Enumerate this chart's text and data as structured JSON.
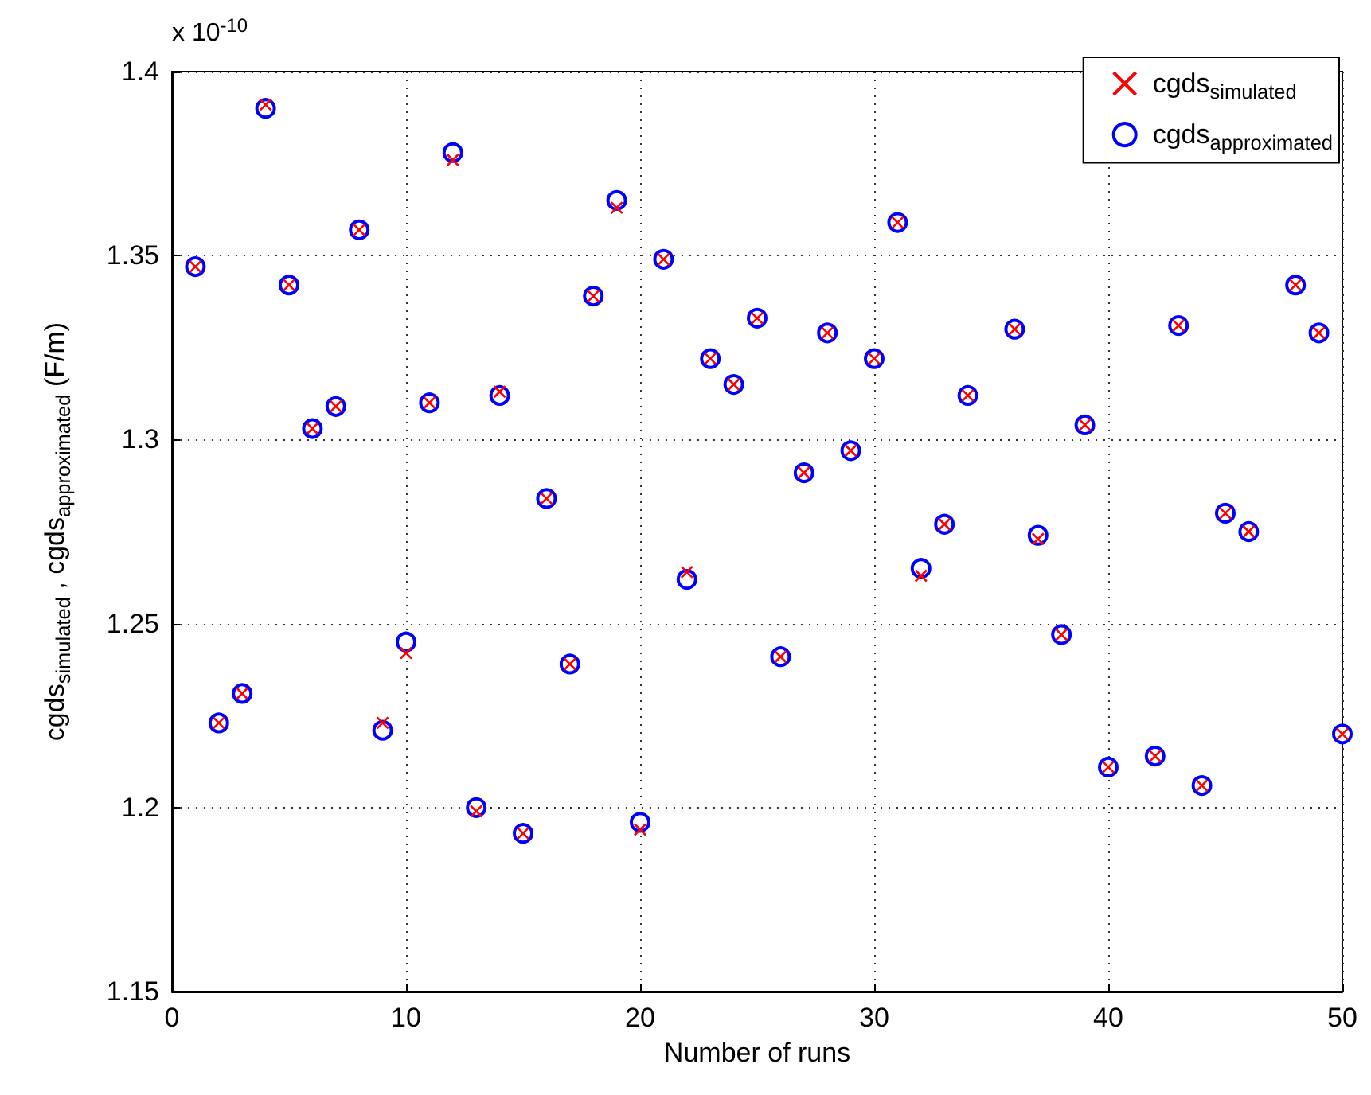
{
  "chart_data": {
    "type": "scatter",
    "xlabel": "Number of runs",
    "ylabel": "cgds$_{simulated}$ , cgds$_{approximated}$ (F/m)",
    "annotations": [
      "x 10$^{-10}$"
    ],
    "xlim": [
      0,
      50
    ],
    "xticks": [
      0,
      10,
      20,
      30,
      40,
      50
    ],
    "ylim": [
      1.15,
      1.4
    ],
    "yticks": [
      1.15,
      1.2,
      1.25,
      1.3,
      1.35,
      1.4
    ],
    "grid": true,
    "legend": "top right",
    "series": [
      {
        "name": "cgds$_{simulated}$",
        "color": "#ff0000",
        "marker": "cross",
        "x": [
          1,
          2,
          3,
          4,
          5,
          6,
          7,
          8,
          9,
          10,
          11,
          12,
          13,
          14,
          15,
          16,
          17,
          18,
          19,
          20,
          21,
          22,
          23,
          24,
          25,
          26,
          27,
          28,
          29,
          30,
          31,
          32,
          33,
          34,
          36,
          37,
          38,
          39,
          40,
          42,
          43,
          44,
          45,
          46,
          48,
          49,
          50
        ],
        "values": [
          1.347,
          1.223,
          1.231,
          1.391,
          1.342,
          1.303,
          1.309,
          1.357,
          1.223,
          1.242,
          1.31,
          1.376,
          1.199,
          1.313,
          1.193,
          1.284,
          1.239,
          1.339,
          1.363,
          1.194,
          1.349,
          1.264,
          1.322,
          1.315,
          1.333,
          1.241,
          1.291,
          1.329,
          1.297,
          1.322,
          1.359,
          1.263,
          1.277,
          1.312,
          1.33,
          1.273,
          1.247,
          1.304,
          1.211,
          1.214,
          1.331,
          1.206,
          1.28,
          1.275,
          1.342,
          1.329,
          1.22
        ]
      },
      {
        "name": "cgds$_{approximated}$",
        "color": "#0000ff",
        "marker": "circle",
        "x": [
          1,
          2,
          3,
          4,
          5,
          6,
          7,
          8,
          9,
          10,
          11,
          12,
          13,
          14,
          15,
          16,
          17,
          18,
          19,
          20,
          21,
          22,
          23,
          24,
          25,
          26,
          27,
          28,
          29,
          30,
          31,
          32,
          33,
          34,
          36,
          37,
          38,
          39,
          40,
          42,
          43,
          44,
          45,
          46,
          48,
          49,
          50
        ],
        "values": [
          1.347,
          1.223,
          1.231,
          1.39,
          1.342,
          1.303,
          1.309,
          1.357,
          1.221,
          1.245,
          1.31,
          1.378,
          1.2,
          1.312,
          1.193,
          1.284,
          1.239,
          1.339,
          1.365,
          1.196,
          1.349,
          1.262,
          1.322,
          1.315,
          1.333,
          1.241,
          1.291,
          1.329,
          1.297,
          1.322,
          1.359,
          1.265,
          1.277,
          1.312,
          1.33,
          1.274,
          1.247,
          1.304,
          1.211,
          1.214,
          1.331,
          1.206,
          1.28,
          1.275,
          1.342,
          1.329,
          1.22
        ]
      }
    ]
  }
}
